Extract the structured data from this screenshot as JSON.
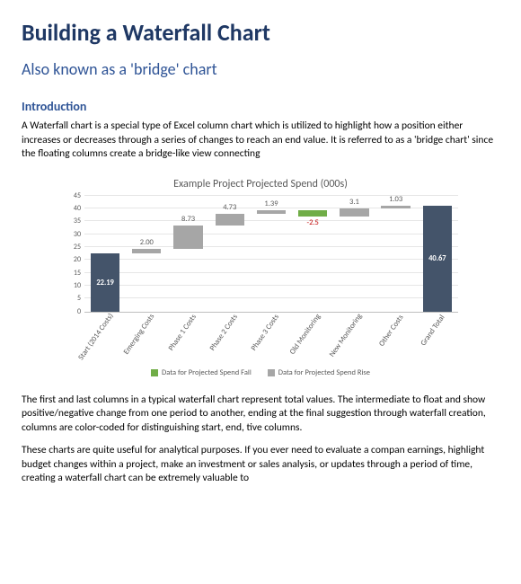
{
  "doc": {
    "title": "Building a Waterfall Chart",
    "subtitle": "Also known as a 'bridge' chart",
    "section_head": "Introduction",
    "para1": "A Waterfall chart is a special type of Excel column chart which is utilized to highlight how a position either increases or decreases through a series of changes to reach an end value. It is referred to as a 'bridge chart' since the floating columns create a bridge-like view connecting",
    "para2": "The first and last columns in a typical waterfall chart represent total values. The intermediate to float and show positive/negative change from one period to another, ending at the final suggestion through waterfall creation, columns are color-coded for distinguishing start, end, tive columns.",
    "para3": "These charts are quite useful for analytical purposes. If you ever need to evaluate a compan earnings, highlight budget changes within a project, make an investment or sales analysis, or updates through a period of time, creating a waterfall chart can be extremely valuable to"
  },
  "chart": {
    "title": "Example Project Projected Spend (000s)",
    "y_max": 45,
    "y_step": 5,
    "categories": [
      "Start (2014 Costs)",
      "Emerging Costs",
      "Phase 1 Costs",
      "Phase 2 Costs",
      "Phase 3 Costs",
      "Old Monitoring",
      "New Monitoring",
      "Other Costs",
      "Grand Total"
    ],
    "bars": [
      {
        "type": "pillar",
        "base": 0,
        "value": 22.19,
        "label": "22.19",
        "label_pos": "inside"
      },
      {
        "type": "rise",
        "base": 22.19,
        "value": 2.0,
        "label": "2.00",
        "label_pos": "above"
      },
      {
        "type": "rise",
        "base": 24.19,
        "value": 8.73,
        "label": "8.73",
        "label_pos": "above"
      },
      {
        "type": "rise",
        "base": 32.92,
        "value": 4.73,
        "label": "4.73",
        "label_pos": "above"
      },
      {
        "type": "rise",
        "base": 37.65,
        "value": 1.39,
        "label": "1.39",
        "label_pos": "above"
      },
      {
        "type": "fall",
        "base": 36.54,
        "value": 2.5,
        "label": "-2.5",
        "label_pos": "below-neg"
      },
      {
        "type": "rise",
        "base": 36.54,
        "value": 3.1,
        "label": "3.1",
        "label_pos": "above"
      },
      {
        "type": "rise",
        "base": 39.64,
        "value": 1.03,
        "label": "1.03",
        "label_pos": "above"
      },
      {
        "type": "pillar",
        "base": 0,
        "value": 40.67,
        "label": "40.67",
        "label_pos": "inside"
      }
    ],
    "colors": {
      "pillar": "#44546a",
      "rise": "#a6a6a6",
      "fall": "#70ad47",
      "grid": "#e6e6e6",
      "axis_text": "#595959",
      "neg_label": "#c00000"
    },
    "legend": {
      "fall": "Data for Projected Spend Fall",
      "rise": "Data for Projected Spend Rise"
    }
  }
}
